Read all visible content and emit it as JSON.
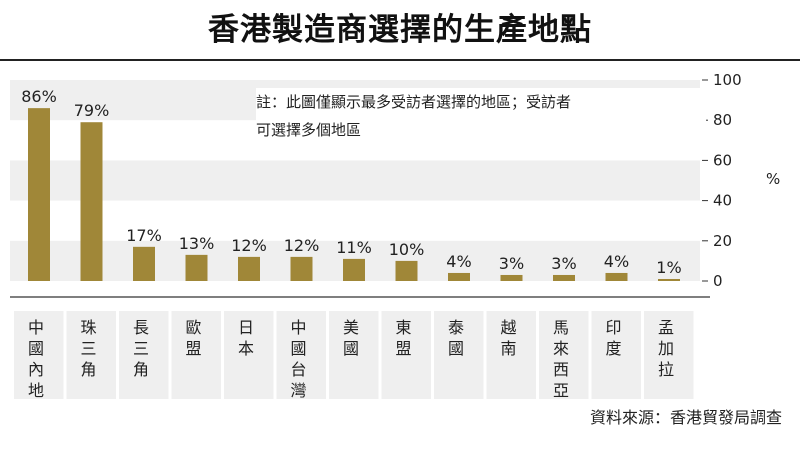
{
  "chart_data": {
    "type": "bar",
    "title": "香港製造商選擇的生產地點",
    "note_lines": [
      "註：此圖僅顯示最多受訪者選擇的地區；受訪者",
      "可選擇多個地區"
    ],
    "source": "資料來源：香港貿發局調查",
    "ylabel": "%",
    "ylim": [
      0,
      100
    ],
    "y_ticks": [
      0,
      20,
      40,
      60,
      80,
      100
    ],
    "categories": [
      "中國內地",
      "珠三角",
      "長三角",
      "歐盟",
      "日本",
      "中國台灣",
      "美國",
      "東盟",
      "泰國",
      "越南",
      "馬來西亞",
      "印度",
      "孟加拉"
    ],
    "values": [
      86,
      79,
      17,
      13,
      12,
      12,
      11,
      10,
      4,
      3,
      3,
      4,
      1
    ],
    "value_labels": [
      "86%",
      "79%",
      "17%",
      "13%",
      "12%",
      "12%",
      "11%",
      "10%",
      "4%",
      "3%",
      "3%",
      "4%",
      "1%"
    ],
    "bar_color": "#a08738",
    "band_color": "#efefef",
    "grid": "alternating bands"
  }
}
